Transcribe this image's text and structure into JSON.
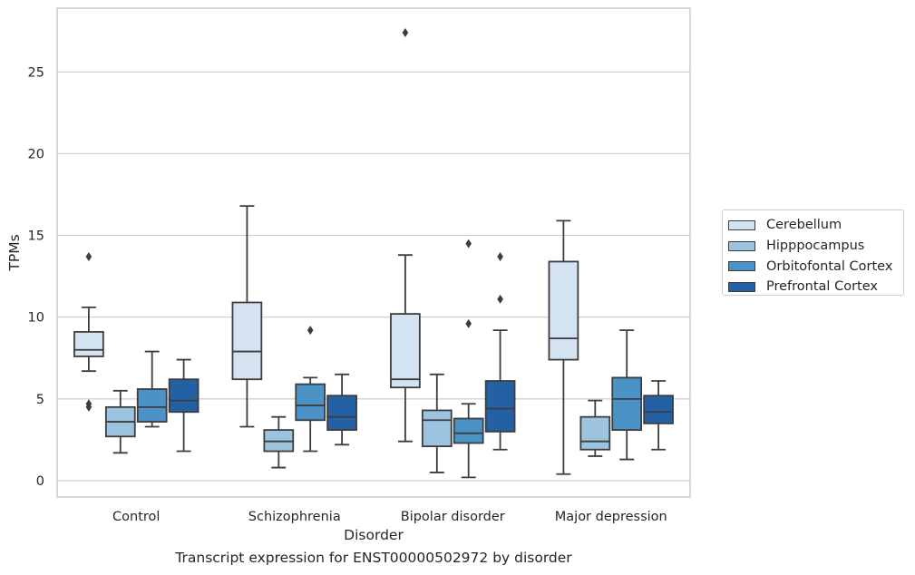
{
  "caption": "Transcript expression for ENST00000502972 by disorder",
  "colors": {
    "Cerebellum": "#d3e3f2",
    "Hipppocampus": "#9cc4de",
    "Orbitofontal Cortex": "#4b93c6",
    "Prefrontal Cortex": "#2361a4",
    "grid": "#cccccc",
    "box_edge": "#3d3d3d"
  },
  "chart_data": {
    "type": "box",
    "xlabel": "Disorder",
    "ylabel": "TPMs",
    "categories": [
      "Control",
      "Schizophrenia",
      "Bipolar disorder",
      "Major depression"
    ],
    "ylim": [
      -1,
      28.9
    ],
    "yticks": [
      0,
      5,
      10,
      15,
      20,
      25
    ],
    "grid": true,
    "legend_position": "right-outside",
    "series": [
      {
        "name": "Cerebellum",
        "boxes": [
          {
            "whislo": 6.7,
            "q1": 7.6,
            "med": 8.0,
            "q3": 9.1,
            "whishi": 10.6,
            "fliers": [
              13.7,
              4.7,
              4.5
            ]
          },
          {
            "whislo": 3.3,
            "q1": 6.2,
            "med": 7.9,
            "q3": 10.9,
            "whishi": 16.8,
            "fliers": []
          },
          {
            "whislo": 2.4,
            "q1": 5.7,
            "med": 6.2,
            "q3": 10.2,
            "whishi": 13.8,
            "fliers": [
              27.4
            ]
          },
          {
            "whislo": 0.4,
            "q1": 7.4,
            "med": 8.7,
            "q3": 13.4,
            "whishi": 15.9,
            "fliers": []
          }
        ]
      },
      {
        "name": "Hipppocampus",
        "boxes": [
          {
            "whislo": 1.7,
            "q1": 2.7,
            "med": 3.6,
            "q3": 4.5,
            "whishi": 5.5,
            "fliers": []
          },
          {
            "whislo": 0.8,
            "q1": 1.8,
            "med": 2.4,
            "q3": 3.1,
            "whishi": 3.9,
            "fliers": []
          },
          {
            "whislo": 0.5,
            "q1": 2.1,
            "med": 3.7,
            "q3": 4.3,
            "whishi": 6.5,
            "fliers": []
          },
          {
            "whislo": 1.5,
            "q1": 1.9,
            "med": 2.4,
            "q3": 3.9,
            "whishi": 4.9,
            "fliers": []
          }
        ]
      },
      {
        "name": "Orbitofontal Cortex",
        "boxes": [
          {
            "whislo": 3.3,
            "q1": 3.6,
            "med": 4.5,
            "q3": 5.6,
            "whishi": 7.9,
            "fliers": []
          },
          {
            "whislo": 1.8,
            "q1": 3.7,
            "med": 4.6,
            "q3": 5.9,
            "whishi": 6.3,
            "fliers": [
              9.2
            ]
          },
          {
            "whislo": 0.2,
            "q1": 2.3,
            "med": 2.9,
            "q3": 3.8,
            "whishi": 4.7,
            "fliers": [
              14.5,
              9.6
            ]
          },
          {
            "whislo": 1.3,
            "q1": 3.1,
            "med": 5.0,
            "q3": 6.3,
            "whishi": 9.2,
            "fliers": []
          }
        ]
      },
      {
        "name": "Prefrontal Cortex",
        "boxes": [
          {
            "whislo": 1.8,
            "q1": 4.2,
            "med": 4.9,
            "q3": 6.2,
            "whishi": 7.4,
            "fliers": []
          },
          {
            "whislo": 2.2,
            "q1": 3.1,
            "med": 3.9,
            "q3": 5.2,
            "whishi": 6.5,
            "fliers": []
          },
          {
            "whislo": 1.9,
            "q1": 3.0,
            "med": 4.4,
            "q3": 6.1,
            "whishi": 9.2,
            "fliers": [
              13.7,
              11.1
            ]
          },
          {
            "whislo": 1.9,
            "q1": 3.5,
            "med": 4.2,
            "q3": 5.2,
            "whishi": 6.1,
            "fliers": []
          }
        ]
      }
    ]
  }
}
